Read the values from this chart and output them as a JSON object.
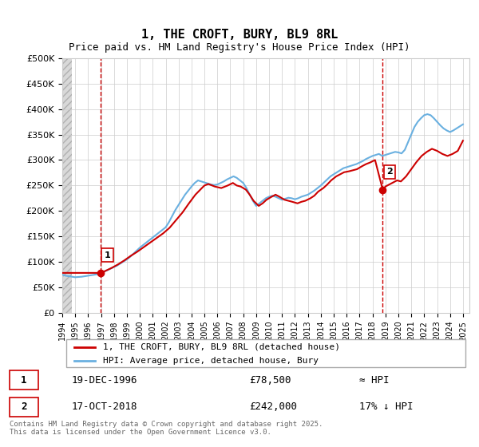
{
  "title": "1, THE CROFT, BURY, BL9 8RL",
  "subtitle": "Price paid vs. HM Land Registry's House Price Index (HPI)",
  "ylabel_ticks": [
    "£0",
    "£50K",
    "£100K",
    "£150K",
    "£200K",
    "£250K",
    "£300K",
    "£350K",
    "£400K",
    "£450K",
    "£500K"
  ],
  "ylim": [
    0,
    500000
  ],
  "xlim_start": 1994.0,
  "xlim_end": 2025.5,
  "sale1_date": 1996.96,
  "sale1_price": 78500,
  "sale2_date": 2018.79,
  "sale2_price": 242000,
  "hpi_color": "#6ab0e0",
  "price_color": "#cc0000",
  "marker_color": "#cc0000",
  "dashed_line_color": "#cc0000",
  "background_hatch_color": "#e8e8e8",
  "grid_color": "#cccccc",
  "legend_label1": "1, THE CROFT, BURY, BL9 8RL (detached house)",
  "legend_label2": "HPI: Average price, detached house, Bury",
  "table_row1_num": "1",
  "table_row1_date": "19-DEC-1996",
  "table_row1_price": "£78,500",
  "table_row1_hpi": "≈ HPI",
  "table_row2_num": "2",
  "table_row2_date": "17-OCT-2018",
  "table_row2_price": "£242,000",
  "table_row2_hpi": "17% ↓ HPI",
  "footer": "Contains HM Land Registry data © Crown copyright and database right 2025.\nThis data is licensed under the Open Government Licence v3.0.",
  "hpi_data_x": [
    1994.0,
    1994.25,
    1994.5,
    1994.75,
    1995.0,
    1995.25,
    1995.5,
    1995.75,
    1996.0,
    1996.25,
    1996.5,
    1996.75,
    1997.0,
    1997.25,
    1997.5,
    1997.75,
    1998.0,
    1998.25,
    1998.5,
    1998.75,
    1999.0,
    1999.25,
    1999.5,
    1999.75,
    2000.0,
    2000.25,
    2000.5,
    2000.75,
    2001.0,
    2001.25,
    2001.5,
    2001.75,
    2002.0,
    2002.25,
    2002.5,
    2002.75,
    2003.0,
    2003.25,
    2003.5,
    2003.75,
    2004.0,
    2004.25,
    2004.5,
    2004.75,
    2005.0,
    2005.25,
    2005.5,
    2005.75,
    2006.0,
    2006.25,
    2006.5,
    2006.75,
    2007.0,
    2007.25,
    2007.5,
    2007.75,
    2008.0,
    2008.25,
    2008.5,
    2008.75,
    2009.0,
    2009.25,
    2009.5,
    2009.75,
    2010.0,
    2010.25,
    2010.5,
    2010.75,
    2011.0,
    2011.25,
    2011.5,
    2011.75,
    2012.0,
    2012.25,
    2012.5,
    2012.75,
    2013.0,
    2013.25,
    2013.5,
    2013.75,
    2014.0,
    2014.25,
    2014.5,
    2014.75,
    2015.0,
    2015.25,
    2015.5,
    2015.75,
    2016.0,
    2016.25,
    2016.5,
    2016.75,
    2017.0,
    2017.25,
    2017.5,
    2017.75,
    2018.0,
    2018.25,
    2018.5,
    2018.75,
    2019.0,
    2019.25,
    2019.5,
    2019.75,
    2020.0,
    2020.25,
    2020.5,
    2020.75,
    2021.0,
    2021.25,
    2021.5,
    2021.75,
    2022.0,
    2022.25,
    2022.5,
    2022.75,
    2023.0,
    2023.25,
    2023.5,
    2023.75,
    2024.0,
    2024.25,
    2024.5,
    2024.75,
    2025.0
  ],
  "hpi_data_y": [
    75000,
    73000,
    72000,
    71000,
    70000,
    70500,
    71000,
    72000,
    73000,
    74000,
    75000,
    76000,
    78000,
    81000,
    84000,
    87000,
    90000,
    93000,
    97000,
    101000,
    105000,
    110000,
    116000,
    122000,
    128000,
    133000,
    138000,
    143000,
    148000,
    153000,
    158000,
    163000,
    168000,
    178000,
    190000,
    202000,
    212000,
    222000,
    232000,
    240000,
    248000,
    255000,
    260000,
    258000,
    256000,
    254000,
    252000,
    251000,
    252000,
    255000,
    258000,
    262000,
    265000,
    268000,
    265000,
    260000,
    255000,
    245000,
    232000,
    220000,
    210000,
    215000,
    220000,
    225000,
    228000,
    230000,
    228000,
    225000,
    222000,
    224000,
    226000,
    225000,
    223000,
    225000,
    228000,
    230000,
    232000,
    236000,
    240000,
    245000,
    250000,
    256000,
    262000,
    268000,
    272000,
    276000,
    280000,
    284000,
    286000,
    288000,
    290000,
    292000,
    295000,
    298000,
    302000,
    305000,
    308000,
    310000,
    312000,
    308000,
    310000,
    312000,
    314000,
    316000,
    315000,
    313000,
    320000,
    335000,
    350000,
    365000,
    375000,
    382000,
    388000,
    390000,
    388000,
    382000,
    375000,
    368000,
    362000,
    358000,
    355000,
    358000,
    362000,
    366000,
    370000
  ],
  "price_data_x": [
    1994.0,
    1994.5,
    1995.0,
    1995.5,
    1996.0,
    1996.5,
    1996.96,
    1997.3,
    1997.8,
    1998.3,
    1998.8,
    1999.3,
    1999.8,
    2000.3,
    2000.8,
    2001.3,
    2001.8,
    2002.3,
    2002.8,
    2003.3,
    2003.8,
    2004.3,
    2004.8,
    2005.0,
    2005.3,
    2005.8,
    2006.3,
    2006.8,
    2007.2,
    2007.5,
    2007.8,
    2008.2,
    2008.5,
    2008.8,
    2009.2,
    2009.5,
    2009.8,
    2010.2,
    2010.5,
    2010.8,
    2011.2,
    2011.5,
    2011.8,
    2012.2,
    2012.5,
    2012.8,
    2013.2,
    2013.5,
    2013.8,
    2014.2,
    2014.5,
    2014.8,
    2015.2,
    2015.5,
    2015.8,
    2016.2,
    2016.5,
    2016.8,
    2017.2,
    2017.5,
    2017.8,
    2018.2,
    2018.79,
    2019.0,
    2019.3,
    2019.6,
    2019.9,
    2020.2,
    2020.6,
    2021.0,
    2021.4,
    2021.8,
    2022.2,
    2022.6,
    2023.0,
    2023.4,
    2023.8,
    2024.2,
    2024.6,
    2025.0
  ],
  "price_data_y": [
    78500,
    78500,
    78500,
    78500,
    78500,
    78500,
    78500,
    82000,
    88000,
    95000,
    103000,
    112000,
    120000,
    129000,
    138000,
    147000,
    156000,
    167000,
    182000,
    197000,
    215000,
    232000,
    245000,
    250000,
    253000,
    248000,
    245000,
    250000,
    255000,
    250000,
    248000,
    242000,
    232000,
    220000,
    210000,
    215000,
    222000,
    228000,
    232000,
    228000,
    222000,
    220000,
    218000,
    215000,
    218000,
    220000,
    225000,
    230000,
    238000,
    245000,
    252000,
    260000,
    268000,
    272000,
    276000,
    278000,
    280000,
    282000,
    288000,
    292000,
    295000,
    300000,
    242000,
    248000,
    252000,
    256000,
    260000,
    258000,
    268000,
    282000,
    296000,
    308000,
    316000,
    322000,
    318000,
    312000,
    308000,
    312000,
    318000,
    338000
  ]
}
